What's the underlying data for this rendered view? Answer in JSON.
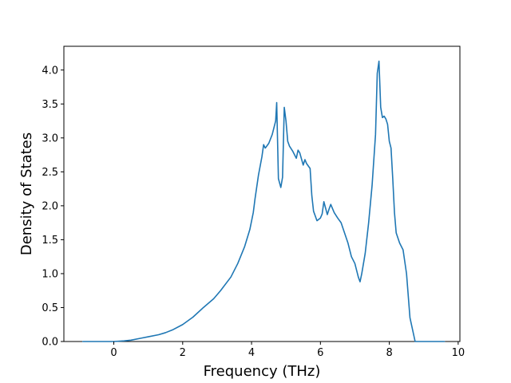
{
  "chart_data": {
    "type": "line",
    "title": "",
    "xlabel": "Frequency (THz)",
    "ylabel": "Density of States",
    "xlim": [
      -1.45,
      10.05
    ],
    "ylim": [
      0.0,
      4.35
    ],
    "xticks": [
      0,
      2,
      4,
      6,
      8,
      10
    ],
    "xtick_labels": [
      "0",
      "2",
      "4",
      "6",
      "8",
      "10"
    ],
    "yticks": [
      0.0,
      0.5,
      1.0,
      1.5,
      2.0,
      2.5,
      3.0,
      3.5,
      4.0
    ],
    "ytick_labels": [
      "0.0",
      "0.5",
      "1.0",
      "1.5",
      "2.0",
      "2.5",
      "3.0",
      "3.5",
      "4.0"
    ],
    "grid": false,
    "series": [
      {
        "color": "#1f77b4",
        "x": [
          -0.9,
          -0.5,
          0.0,
          0.3,
          0.5,
          0.8,
          1.0,
          1.3,
          1.5,
          1.7,
          2.0,
          2.3,
          2.6,
          2.9,
          3.1,
          3.4,
          3.6,
          3.8,
          3.95,
          4.05,
          4.1,
          4.2,
          4.3,
          4.35,
          4.4,
          4.5,
          4.6,
          4.7,
          4.73,
          4.78,
          4.85,
          4.9,
          4.95,
          5.0,
          5.05,
          5.1,
          5.2,
          5.3,
          5.35,
          5.4,
          5.5,
          5.55,
          5.6,
          5.7,
          5.75,
          5.8,
          5.9,
          6.0,
          6.05,
          6.1,
          6.2,
          6.25,
          6.3,
          6.4,
          6.5,
          6.6,
          6.7,
          6.8,
          6.9,
          7.0,
          7.1,
          7.15,
          7.2,
          7.3,
          7.4,
          7.5,
          7.6,
          7.65,
          7.7,
          7.75,
          7.8,
          7.85,
          7.9,
          7.95,
          8.0,
          8.05,
          8.1,
          8.15,
          8.2,
          8.3,
          8.4,
          8.5,
          8.6,
          8.75,
          9.0,
          9.6
        ],
        "y": [
          0.0,
          0.0,
          0.0,
          0.01,
          0.02,
          0.05,
          0.07,
          0.1,
          0.13,
          0.17,
          0.25,
          0.36,
          0.5,
          0.63,
          0.75,
          0.95,
          1.15,
          1.4,
          1.65,
          1.9,
          2.1,
          2.45,
          2.72,
          2.9,
          2.85,
          2.92,
          3.05,
          3.25,
          3.52,
          2.4,
          2.27,
          2.42,
          3.45,
          3.25,
          2.95,
          2.88,
          2.8,
          2.7,
          2.82,
          2.78,
          2.6,
          2.68,
          2.62,
          2.55,
          2.15,
          1.92,
          1.78,
          1.82,
          1.88,
          2.06,
          1.87,
          1.95,
          2.02,
          1.9,
          1.82,
          1.75,
          1.6,
          1.45,
          1.25,
          1.15,
          0.95,
          0.88,
          1.0,
          1.3,
          1.75,
          2.3,
          3.05,
          3.95,
          4.13,
          3.45,
          3.3,
          3.32,
          3.28,
          3.2,
          2.95,
          2.85,
          2.4,
          1.9,
          1.6,
          1.45,
          1.35,
          1.0,
          0.35,
          0.0,
          0.0,
          0.0
        ]
      }
    ]
  }
}
